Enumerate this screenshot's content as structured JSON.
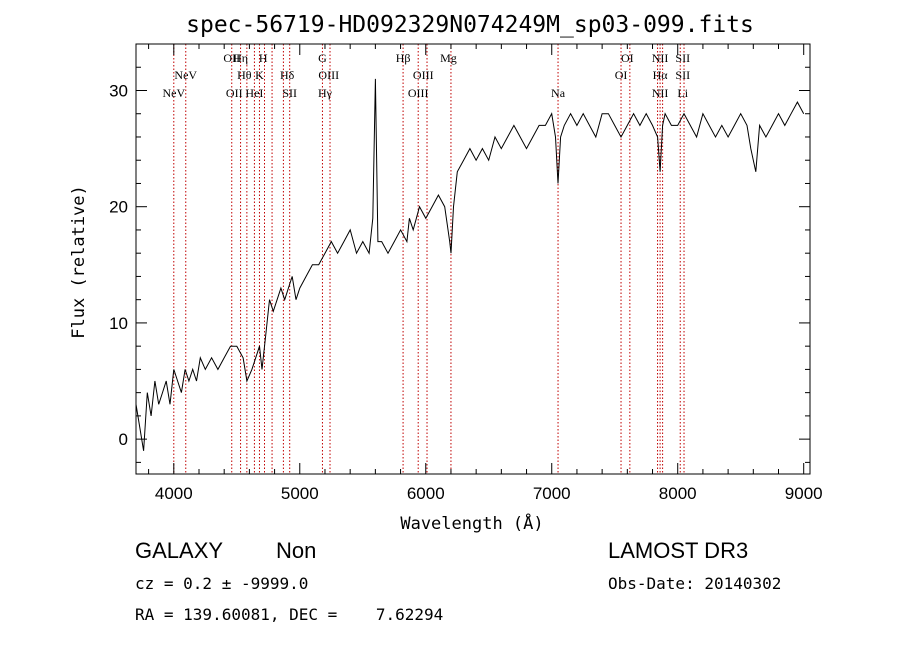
{
  "chart_data": {
    "type": "line",
    "title": "spec-56719-HD092329N074249M_sp03-099.fits",
    "xlabel": "Wavelength (Å)",
    "ylabel": "Flux (relative)",
    "xlim": [
      3700,
      9050
    ],
    "ylim": [
      -3,
      34
    ],
    "x_ticks": [
      4000,
      5000,
      6000,
      7000,
      8000,
      9000
    ],
    "y_ticks": [
      0,
      10,
      20,
      30
    ],
    "grid": false,
    "series": [
      {
        "x": [
          3700,
          3730,
          3760,
          3790,
          3820,
          3850,
          3880,
          3910,
          3940,
          3970,
          4000,
          4030,
          4060,
          4090,
          4120,
          4150,
          4180,
          4210,
          4250,
          4300,
          4350,
          4400,
          4450,
          4500,
          4550,
          4580,
          4620,
          4650,
          4680,
          4700,
          4730,
          4760,
          4790,
          4820,
          4850,
          4880,
          4910,
          4940,
          4970,
          5000,
          5050,
          5100,
          5150,
          5200,
          5250,
          5300,
          5350,
          5400,
          5450,
          5500,
          5550,
          5580,
          5600,
          5620,
          5650,
          5700,
          5750,
          5800,
          5850,
          5870,
          5900,
          5950,
          6000,
          6050,
          6100,
          6150,
          6190,
          6200,
          6220,
          6250,
          6300,
          6350,
          6400,
          6450,
          6500,
          6550,
          6600,
          6650,
          6700,
          6750,
          6800,
          6850,
          6900,
          6950,
          7000,
          7030,
          7050,
          7070,
          7100,
          7150,
          7200,
          7250,
          7300,
          7350,
          7400,
          7450,
          7500,
          7550,
          7600,
          7650,
          7700,
          7750,
          7800,
          7840,
          7860,
          7880,
          7900,
          7950,
          8000,
          8050,
          8100,
          8150,
          8200,
          8250,
          8300,
          8350,
          8400,
          8450,
          8500,
          8550,
          8580,
          8620,
          8650,
          8700,
          8750,
          8800,
          8850,
          8900,
          8950,
          9000
        ],
        "values": [
          3,
          1,
          -1,
          4,
          2,
          5,
          3,
          4,
          5,
          3,
          6,
          5,
          4,
          6,
          5,
          6,
          5,
          7,
          6,
          7,
          6,
          7,
          8,
          8,
          7,
          5,
          6,
          7,
          8,
          6,
          9,
          12,
          11,
          12,
          13,
          12,
          13,
          14,
          12,
          13,
          14,
          15,
          15,
          16,
          17,
          16,
          17,
          18,
          16,
          17,
          16,
          19,
          31,
          17,
          17,
          16,
          17,
          18,
          17,
          19,
          18,
          20,
          19,
          20,
          21,
          20,
          17,
          16,
          20,
          23,
          24,
          25,
          24,
          25,
          24,
          26,
          25,
          26,
          27,
          26,
          25,
          26,
          27,
          27,
          28,
          26,
          22,
          26,
          27,
          28,
          27,
          28,
          27,
          26,
          28,
          28,
          27,
          26,
          27,
          28,
          27,
          28,
          27,
          26,
          23,
          27,
          28,
          27,
          27,
          28,
          27,
          26,
          28,
          27,
          26,
          27,
          26,
          27,
          28,
          27,
          25,
          23,
          27,
          26,
          27,
          28,
          27,
          28,
          29,
          28
        ]
      }
    ],
    "emission_lines": [
      {
        "label": "NeV",
        "x": 4000,
        "row": 3
      },
      {
        "label": "NeV",
        "x": 4095,
        "row": 2
      },
      {
        "label": "OII",
        "x": 4460,
        "row": 1
      },
      {
        "label": "OII",
        "x": 4480,
        "row": 3
      },
      {
        "label": "Hη",
        "x": 4530,
        "row": 1
      },
      {
        "label": "Hθ",
        "x": 4560,
        "row": 2
      },
      {
        "label": "HeI",
        "x": 4640,
        "row": 3
      },
      {
        "label": "H",
        "x": 4710,
        "row": 1
      },
      {
        "label": "K",
        "x": 4680,
        "row": 2
      },
      {
        "label": "Hδ",
        "x": 4900,
        "row": 2
      },
      {
        "label": "SII",
        "x": 4920,
        "row": 3
      },
      {
        "label": "G",
        "x": 5180,
        "row": 1
      },
      {
        "label": "OIII",
        "x": 5230,
        "row": 2
      },
      {
        "label": "Hγ",
        "x": 5200,
        "row": 3
      },
      {
        "label": "Hβ",
        "x": 5820,
        "row": 1
      },
      {
        "label": "OIII",
        "x": 5980,
        "row": 2
      },
      {
        "label": "OIII",
        "x": 5940,
        "row": 3
      },
      {
        "label": "Mg",
        "x": 6180,
        "row": 1
      },
      {
        "label": "Na",
        "x": 7050,
        "row": 3
      },
      {
        "label": "OI",
        "x": 7600,
        "row": 1
      },
      {
        "label": "OI",
        "x": 7550,
        "row": 2
      },
      {
        "label": "NII",
        "x": 7860,
        "row": 1
      },
      {
        "label": "SII",
        "x": 8040,
        "row": 1
      },
      {
        "label": "Hα",
        "x": 7860,
        "row": 2
      },
      {
        "label": "SII",
        "x": 8040,
        "row": 2
      },
      {
        "label": "NII",
        "x": 7860,
        "row": 3
      },
      {
        "label": "Li",
        "x": 8040,
        "row": 3
      }
    ],
    "dashed_line_x": [
      4000,
      4095,
      4460,
      4530,
      4580,
      4640,
      4680,
      4720,
      4780,
      4870,
      4920,
      5180,
      5240,
      5820,
      5940,
      6010,
      6200,
      7050,
      7550,
      7620,
      7840,
      7860,
      7880,
      8020,
      8050
    ]
  },
  "info": {
    "class_label": "GALAXY",
    "subclass_label": "Non",
    "survey_label": "LAMOST DR3",
    "cz_text": "cz = 0.2 ± -9999.0",
    "obs_date_text": "Obs-Date: 20140302",
    "radec_text": "RA = 139.60081, DEC =    7.62294"
  }
}
